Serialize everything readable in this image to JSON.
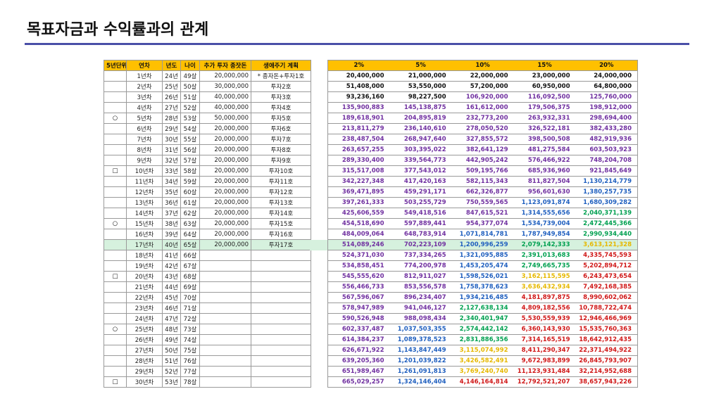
{
  "header": {
    "title": "목표자금과 수익률과의 관계"
  },
  "left_table": {
    "columns": [
      "5년단위",
      "연차",
      "년도",
      "나이",
      "추가 투자 종잣돈",
      "생애주기 계획"
    ],
    "rows": [
      [
        null,
        "1년차",
        "24년",
        "49살",
        "20,000,000",
        "* 종자돈+투자1호"
      ],
      [
        null,
        "2년차",
        "25년",
        "50살",
        "30,000,000",
        "투자2호"
      ],
      [
        null,
        "3년차",
        "26년",
        "51살",
        "40,000,000",
        "투자3호"
      ],
      [
        null,
        "4년차",
        "27년",
        "52살",
        "40,000,000",
        "투자4호"
      ],
      [
        "○",
        "5년차",
        "28년",
        "53살",
        "50,000,000",
        "투자5호"
      ],
      [
        null,
        "6년차",
        "29년",
        "54살",
        "20,000,000",
        "투자6호"
      ],
      [
        null,
        "7년차",
        "30년",
        "55살",
        "20,000,000",
        "투자7호"
      ],
      [
        null,
        "8년차",
        "31년",
        "56살",
        "20,000,000",
        "투자8호"
      ],
      [
        null,
        "9년차",
        "32년",
        "57살",
        "20,000,000",
        "투자9호"
      ],
      [
        "□",
        "10년차",
        "33년",
        "58살",
        "20,000,000",
        "투자10호"
      ],
      [
        null,
        "11년차",
        "34년",
        "59살",
        "20,000,000",
        "투자11호"
      ],
      [
        null,
        "12년차",
        "35년",
        "60살",
        "20,000,000",
        "투자12호"
      ],
      [
        null,
        "13년차",
        "36년",
        "61살",
        "20,000,000",
        "투자13호"
      ],
      [
        null,
        "14년차",
        "37년",
        "62살",
        "20,000,000",
        "투자14호"
      ],
      [
        "○",
        "15년차",
        "38년",
        "63살",
        "20,000,000",
        "투자15호"
      ],
      [
        null,
        "16년차",
        "39년",
        "64살",
        "20,000,000",
        "투자16호"
      ],
      [
        null,
        "17년차",
        "40년",
        "65살",
        "20,000,000",
        "투자17호"
      ],
      [
        null,
        "18년차",
        "41년",
        "66살",
        null,
        null
      ],
      [
        null,
        "19년차",
        "42년",
        "67살",
        null,
        null
      ],
      [
        "□",
        "20년차",
        "43년",
        "68살",
        null,
        null
      ],
      [
        null,
        "21년차",
        "44년",
        "69살",
        null,
        null
      ],
      [
        null,
        "22년차",
        "45년",
        "70살",
        null,
        null
      ],
      [
        null,
        "23년차",
        "46년",
        "71살",
        null,
        null
      ],
      [
        null,
        "24년차",
        "47년",
        "72살",
        null,
        null
      ],
      [
        "○",
        "25년차",
        "48년",
        "73살",
        null,
        null
      ],
      [
        null,
        "26년차",
        "49년",
        "74살",
        null,
        null
      ],
      [
        null,
        "27년차",
        "50년",
        "75살",
        null,
        null
      ],
      [
        null,
        "28년차",
        "51년",
        "76살",
        null,
        null
      ],
      [
        null,
        "29년차",
        "52년",
        "77살",
        null,
        null
      ],
      [
        "□",
        "30년차",
        "53년",
        "78살",
        null,
        null
      ]
    ]
  },
  "right_table": {
    "columns": [
      "2%",
      "5%",
      "10%",
      "15%",
      "20%"
    ],
    "rows": [
      [
        "20,400,000",
        "21,000,000",
        "22,000,000",
        "23,000,000",
        "24,000,000"
      ],
      [
        "51,408,000",
        "53,550,000",
        "57,200,000",
        "60,950,000",
        "64,800,000"
      ],
      [
        "93,236,160",
        "98,227,500",
        "106,920,000",
        "116,092,500",
        "125,760,000"
      ],
      [
        "135,900,883",
        "145,138,875",
        "161,612,000",
        "179,506,375",
        "198,912,000"
      ],
      [
        "189,618,901",
        "204,895,819",
        "232,773,200",
        "263,932,331",
        "298,694,400"
      ],
      [
        "213,811,279",
        "236,140,610",
        "278,050,520",
        "326,522,181",
        "382,433,280"
      ],
      [
        "238,487,504",
        "268,947,640",
        "327,855,572",
        "398,500,508",
        "482,919,936"
      ],
      [
        "263,657,255",
        "303,395,022",
        "382,641,129",
        "481,275,584",
        "603,503,923"
      ],
      [
        "289,330,400",
        "339,564,773",
        "442,905,242",
        "576,466,922",
        "748,204,708"
      ],
      [
        "315,517,008",
        "377,543,012",
        "509,195,766",
        "685,936,960",
        "921,845,649"
      ],
      [
        "342,227,348",
        "417,420,163",
        "582,115,343",
        "811,827,504",
        "1,130,214,779"
      ],
      [
        "369,471,895",
        "459,291,171",
        "662,326,877",
        "956,601,630",
        "1,380,257,735"
      ],
      [
        "397,261,333",
        "503,255,729",
        "750,559,565",
        "1,123,091,874",
        "1,680,309,282"
      ],
      [
        "425,606,559",
        "549,418,516",
        "847,615,521",
        "1,314,555,656",
        "2,040,371,139"
      ],
      [
        "454,518,690",
        "597,889,441",
        "954,377,074",
        "1,534,739,004",
        "2,472,445,366"
      ],
      [
        "484,009,064",
        "648,783,914",
        "1,071,814,781",
        "1,787,949,854",
        "2,990,934,440"
      ],
      [
        "514,089,246",
        "702,223,109",
        "1,200,996,259",
        "2,079,142,333",
        "3,613,121,328"
      ],
      [
        "524,371,030",
        "737,334,265",
        "1,321,095,885",
        "2,391,013,683",
        "4,335,745,593"
      ],
      [
        "534,858,451",
        "774,200,978",
        "1,453,205,474",
        "2,749,665,735",
        "5,202,894,712"
      ],
      [
        "545,555,620",
        "812,911,027",
        "1,598,526,021",
        "3,162,115,595",
        "6,243,473,654"
      ],
      [
        "556,466,733",
        "853,556,578",
        "1,758,378,623",
        "3,636,432,934",
        "7,492,168,385"
      ],
      [
        "567,596,067",
        "896,234,407",
        "1,934,216,485",
        "4,181,897,875",
        "8,990,602,062"
      ],
      [
        "578,947,989",
        "941,046,127",
        "2,127,638,134",
        "4,809,182,556",
        "10,788,722,474"
      ],
      [
        "590,526,948",
        "988,098,434",
        "2,340,401,947",
        "5,530,559,939",
        "12,946,466,969"
      ],
      [
        "602,337,487",
        "1,037,503,355",
        "2,574,442,142",
        "6,360,143,930",
        "15,535,760,363"
      ],
      [
        "614,384,237",
        "1,089,378,523",
        "2,831,886,356",
        "7,314,165,519",
        "18,642,912,435"
      ],
      [
        "626,671,922",
        "1,143,847,449",
        "3,115,074,992",
        "8,411,290,347",
        "22,371,494,922"
      ],
      [
        "639,205,360",
        "1,201,039,822",
        "3,426,582,491",
        "9,672,983,899",
        "26,845,793,907"
      ],
      [
        "651,989,467",
        "1,261,091,813",
        "3,769,240,740",
        "11,123,931,484",
        "32,214,952,688"
      ],
      [
        "665,029,257",
        "1,324,146,404",
        "4,146,164,814",
        "12,792,521,207",
        "38,657,943,226"
      ]
    ]
  },
  "highlight_row": 16
}
